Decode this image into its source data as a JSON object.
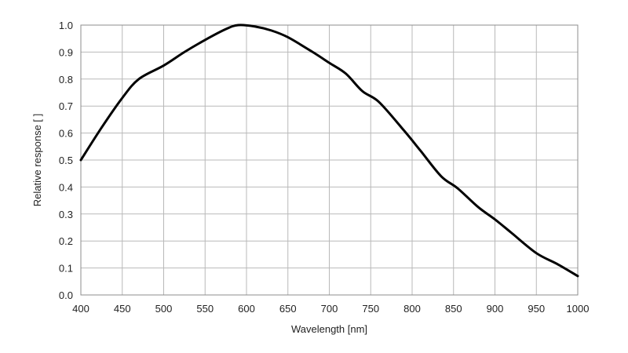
{
  "chart_data": {
    "type": "line",
    "title": "",
    "xlabel": "Wavelength [nm]",
    "ylabel": "Relative response [ ]",
    "xlim": [
      400,
      1000
    ],
    "ylim": [
      0,
      1.0
    ],
    "xticks": [
      400,
      450,
      500,
      550,
      600,
      650,
      700,
      750,
      800,
      850,
      900,
      950,
      1000
    ],
    "yticks": [
      0.0,
      0.1,
      0.2,
      0.3,
      0.4,
      0.5,
      0.6,
      0.7,
      0.8,
      0.9,
      1.0
    ],
    "xtick_labels": [
      "400",
      "450",
      "500",
      "550",
      "600",
      "650",
      "700",
      "750",
      "800",
      "850",
      "900",
      "950",
      "1000"
    ],
    "ytick_labels": [
      "0.0",
      "0.1",
      "0.2",
      "0.3",
      "0.4",
      "0.5",
      "0.6",
      "0.7",
      "0.8",
      "0.9",
      "1.0"
    ],
    "grid": true,
    "series": [
      {
        "color": "#000000",
        "x": [
          400,
          425,
          450,
          470,
          500,
          525,
          550,
          575,
          590,
          610,
          630,
          650,
          680,
          700,
          720,
          740,
          760,
          790,
          810,
          835,
          855,
          880,
          900,
          920,
          950,
          975,
          1000
        ],
        "y": [
          0.5,
          0.62,
          0.73,
          0.8,
          0.85,
          0.9,
          0.945,
          0.985,
          1.0,
          0.995,
          0.98,
          0.955,
          0.9,
          0.86,
          0.82,
          0.755,
          0.715,
          0.61,
          0.535,
          0.44,
          0.395,
          0.325,
          0.28,
          0.23,
          0.155,
          0.115,
          0.07
        ]
      }
    ]
  }
}
